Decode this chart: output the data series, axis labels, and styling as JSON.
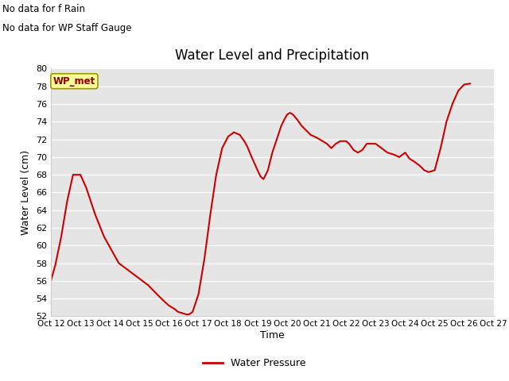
{
  "title": "Water Level and Precipitation",
  "xlabel": "Time",
  "ylabel": "Water Level (cm)",
  "annotation1": "No data for f Rain",
  "annotation2": "No data for WP Staff Gauge",
  "legend_label": "WP_met",
  "legend_bottom": "Water Pressure",
  "ylim": [
    52,
    80
  ],
  "yticks": [
    52,
    54,
    56,
    58,
    60,
    62,
    64,
    66,
    68,
    70,
    72,
    74,
    76,
    78,
    80
  ],
  "xtick_labels": [
    "Oct 12",
    "Oct 13",
    "Oct 14",
    "Oct 15",
    "Oct 16",
    "Oct 17",
    "Oct 18",
    "Oct 19",
    "Oct 20",
    "Oct 21",
    "Oct 22",
    "Oct 23",
    "Oct 24",
    "Oct 25",
    "Oct 26",
    "Oct 27"
  ],
  "line_color": "#cc0000",
  "bg_color": "#e5e5e5",
  "legend_box_facecolor": "#ffff99",
  "legend_box_edgecolor": "#999900",
  "x_data": [
    12.0,
    12.15,
    12.35,
    12.55,
    12.75,
    13.0,
    13.2,
    13.5,
    13.8,
    14.1,
    14.3,
    14.5,
    14.7,
    14.9,
    15.1,
    15.3,
    15.5,
    15.65,
    15.8,
    16.0,
    16.1,
    16.2,
    16.3,
    16.4,
    16.5,
    16.55,
    16.6,
    16.65,
    16.7,
    16.8,
    17.0,
    17.2,
    17.4,
    17.6,
    17.8,
    18.0,
    18.2,
    18.4,
    18.55,
    18.65,
    18.8,
    19.0,
    19.1,
    19.2,
    19.35,
    19.5,
    19.65,
    19.8,
    19.9,
    20.0,
    20.1,
    20.2,
    20.35,
    20.5,
    20.65,
    20.8,
    21.0,
    21.1,
    21.2,
    21.35,
    21.5,
    21.65,
    21.8,
    22.0,
    22.1,
    22.25,
    22.4,
    22.55,
    22.7,
    22.85,
    23.0,
    23.2,
    23.4,
    23.6,
    23.8,
    24.0,
    24.15,
    24.3,
    24.5,
    24.65,
    24.8,
    25.0,
    25.2,
    25.4,
    25.6,
    25.8,
    26.0,
    26.2
  ],
  "y_data": [
    56.0,
    57.8,
    61.0,
    65.0,
    68.0,
    68.0,
    66.5,
    63.5,
    61.0,
    59.2,
    58.0,
    57.5,
    57.0,
    56.5,
    56.0,
    55.5,
    54.8,
    54.3,
    53.8,
    53.2,
    53.0,
    52.8,
    52.5,
    52.4,
    52.3,
    52.25,
    52.2,
    52.2,
    52.25,
    52.5,
    54.5,
    58.5,
    63.5,
    68.0,
    71.0,
    72.3,
    72.8,
    72.5,
    71.8,
    71.2,
    70.0,
    68.5,
    67.8,
    67.5,
    68.5,
    70.5,
    72.0,
    73.5,
    74.2,
    74.8,
    75.0,
    74.8,
    74.2,
    73.5,
    73.0,
    72.5,
    72.2,
    72.0,
    71.8,
    71.5,
    71.0,
    71.5,
    71.8,
    71.8,
    71.5,
    70.8,
    70.5,
    70.8,
    71.5,
    71.5,
    71.5,
    71.0,
    70.5,
    70.3,
    70.0,
    70.5,
    69.8,
    69.5,
    69.0,
    68.5,
    68.3,
    68.5,
    71.0,
    74.0,
    76.0,
    77.5,
    78.2,
    78.3
  ]
}
